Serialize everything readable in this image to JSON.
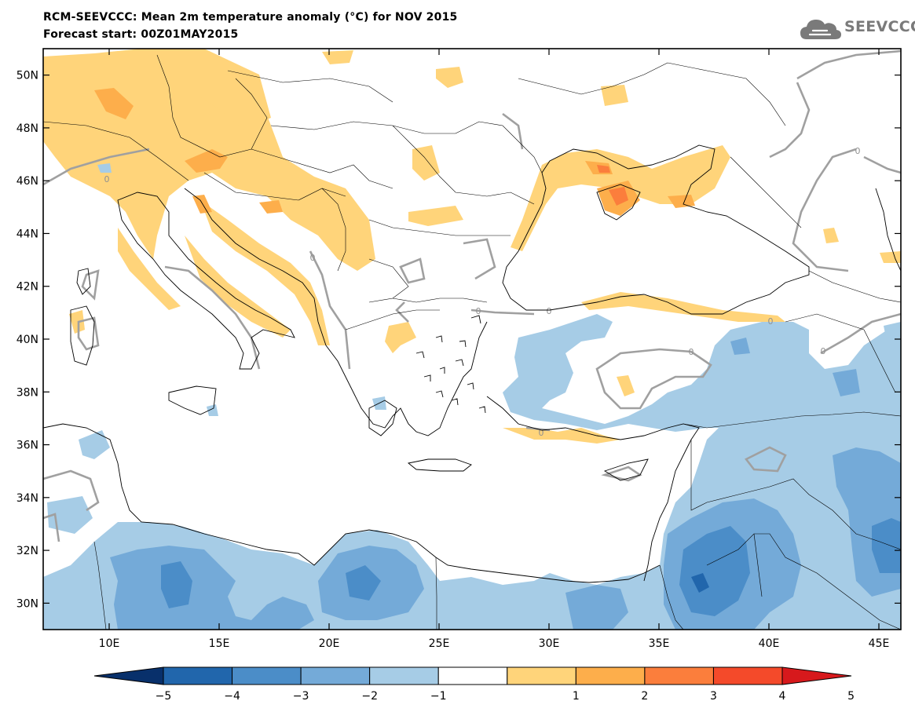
{
  "title": {
    "line1": "RCM-SEEVCCC: Mean 2m temperature anomaly (°C) for NOV 2015",
    "line2": "Forecast start: 00Z01MAY2015"
  },
  "logo": {
    "text": "SEEVCCC",
    "icon": "cloud-icon"
  },
  "map": {
    "lon_range": [
      7,
      46
    ],
    "lat_range": [
      29,
      51
    ],
    "lon_ticks": [
      "10E",
      "15E",
      "20E",
      "25E",
      "30E",
      "35E",
      "40E",
      "45E"
    ],
    "lon_tick_values": [
      10,
      15,
      20,
      25,
      30,
      35,
      40,
      45
    ],
    "lat_ticks": [
      "50N",
      "48N",
      "46N",
      "44N",
      "42N",
      "40N",
      "38N",
      "36N",
      "34N",
      "32N",
      "30N"
    ],
    "lat_tick_values": [
      50,
      48,
      46,
      44,
      42,
      40,
      38,
      36,
      34,
      32,
      30
    ],
    "zero_contour_label": "0"
  },
  "colorbar": {
    "labels": [
      "−5",
      "−4",
      "−3",
      "−2",
      "−1",
      "1",
      "2",
      "3",
      "4",
      "5"
    ],
    "colors": [
      "#08306b",
      "#2166ac",
      "#4b8dc8",
      "#74aad8",
      "#a6cce6",
      "#ffffff",
      "#ffd47a",
      "#fdae4b",
      "#fb7e3c",
      "#f44a2a",
      "#d7191c"
    ]
  },
  "colors": {
    "warm_1": "#ffd47a",
    "warm_2": "#fdae4b",
    "warm_3": "#fb7e3c",
    "cold_1": "#a6cce6",
    "cold_2": "#74aad8",
    "cold_3": "#4b8dc8",
    "cold_4": "#2166ac",
    "cold_5": "#08306b",
    "contour": "#a0a0a0"
  }
}
